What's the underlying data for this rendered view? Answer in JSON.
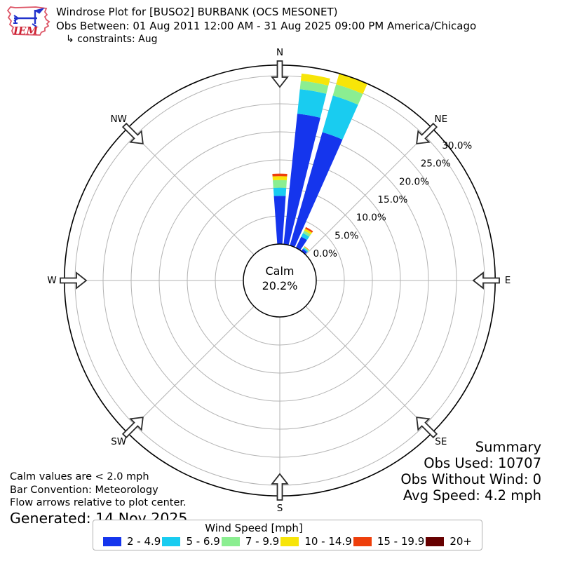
{
  "header": {
    "logo_text": "IEM",
    "title": "Windrose Plot for [BUSO2] BURBANK (OCS MESONET)",
    "subtitle": "Obs Between: 01 Aug 2011 12:00 AM - 31 Aug 2025 09:00 PM America/Chicago",
    "constraints": "↳ constraints: Aug"
  },
  "chart_data": {
    "type": "windrose",
    "title": "Windrose Plot for [BUSO2] BURBANK (OCS MESONET)",
    "compass_labels": [
      "N",
      "NE",
      "E",
      "SE",
      "S",
      "SW",
      "W",
      "NW"
    ],
    "ring_values": [
      0,
      5,
      10,
      15,
      20,
      25,
      30
    ],
    "ring_labels": [
      "0.0%",
      "5.0%",
      "10.0%",
      "15.0%",
      "20.0%",
      "25.0%",
      "30.0%"
    ],
    "r_max_pct": 31.9,
    "wedge_width_deg": 8,
    "calm": {
      "label": "Calm",
      "value": "20.2%"
    },
    "legend_title": "Wind Speed [mph]",
    "speed_bins": [
      {
        "label": "2 - 4.9",
        "color": "#1535ed"
      },
      {
        "label": "5 - 6.9",
        "color": "#19ccf0"
      },
      {
        "label": "7 - 9.9",
        "color": "#8bee91"
      },
      {
        "label": "10 - 14.9",
        "color": "#f7e509"
      },
      {
        "label": "15 - 19.9",
        "color": "#ee3f0b"
      },
      {
        "label": "20+",
        "color": "#660000"
      }
    ],
    "bars": [
      {
        "direction_deg": 0,
        "segments_pct": [
          8.6,
          1.45,
          1.35,
          0.7,
          0.45,
          0
        ]
      },
      {
        "direction_deg": 10,
        "segments_pct": [
          23.4,
          4.4,
          1.5,
          1.3,
          0,
          0
        ]
      },
      {
        "direction_deg": 20,
        "segments_pct": [
          21.0,
          6.8,
          2.1,
          2.0,
          0,
          0
        ]
      },
      {
        "direction_deg": 30,
        "segments_pct": [
          2.2,
          0.7,
          0.5,
          0.4,
          0.3,
          0
        ]
      },
      {
        "direction_deg": 40,
        "segments_pct": [
          0.5,
          0.25,
          0.15,
          0.1,
          0.05,
          0
        ]
      }
    ],
    "grid_color": "#b3b3b3",
    "outline_color": "#000000"
  },
  "summary": {
    "heading": "Summary",
    "obs_used": "Obs Used: 10707",
    "obs_without_wind": "Obs Without Wind: 0",
    "avg_speed": "Avg Speed: 4.2 mph"
  },
  "notes": {
    "calm": "Calm values are < 2.0 mph",
    "convention": "Bar Convention: Meteorology",
    "arrows": "Flow arrows relative to plot center.",
    "generated": "Generated: 14 Nov 2025"
  }
}
